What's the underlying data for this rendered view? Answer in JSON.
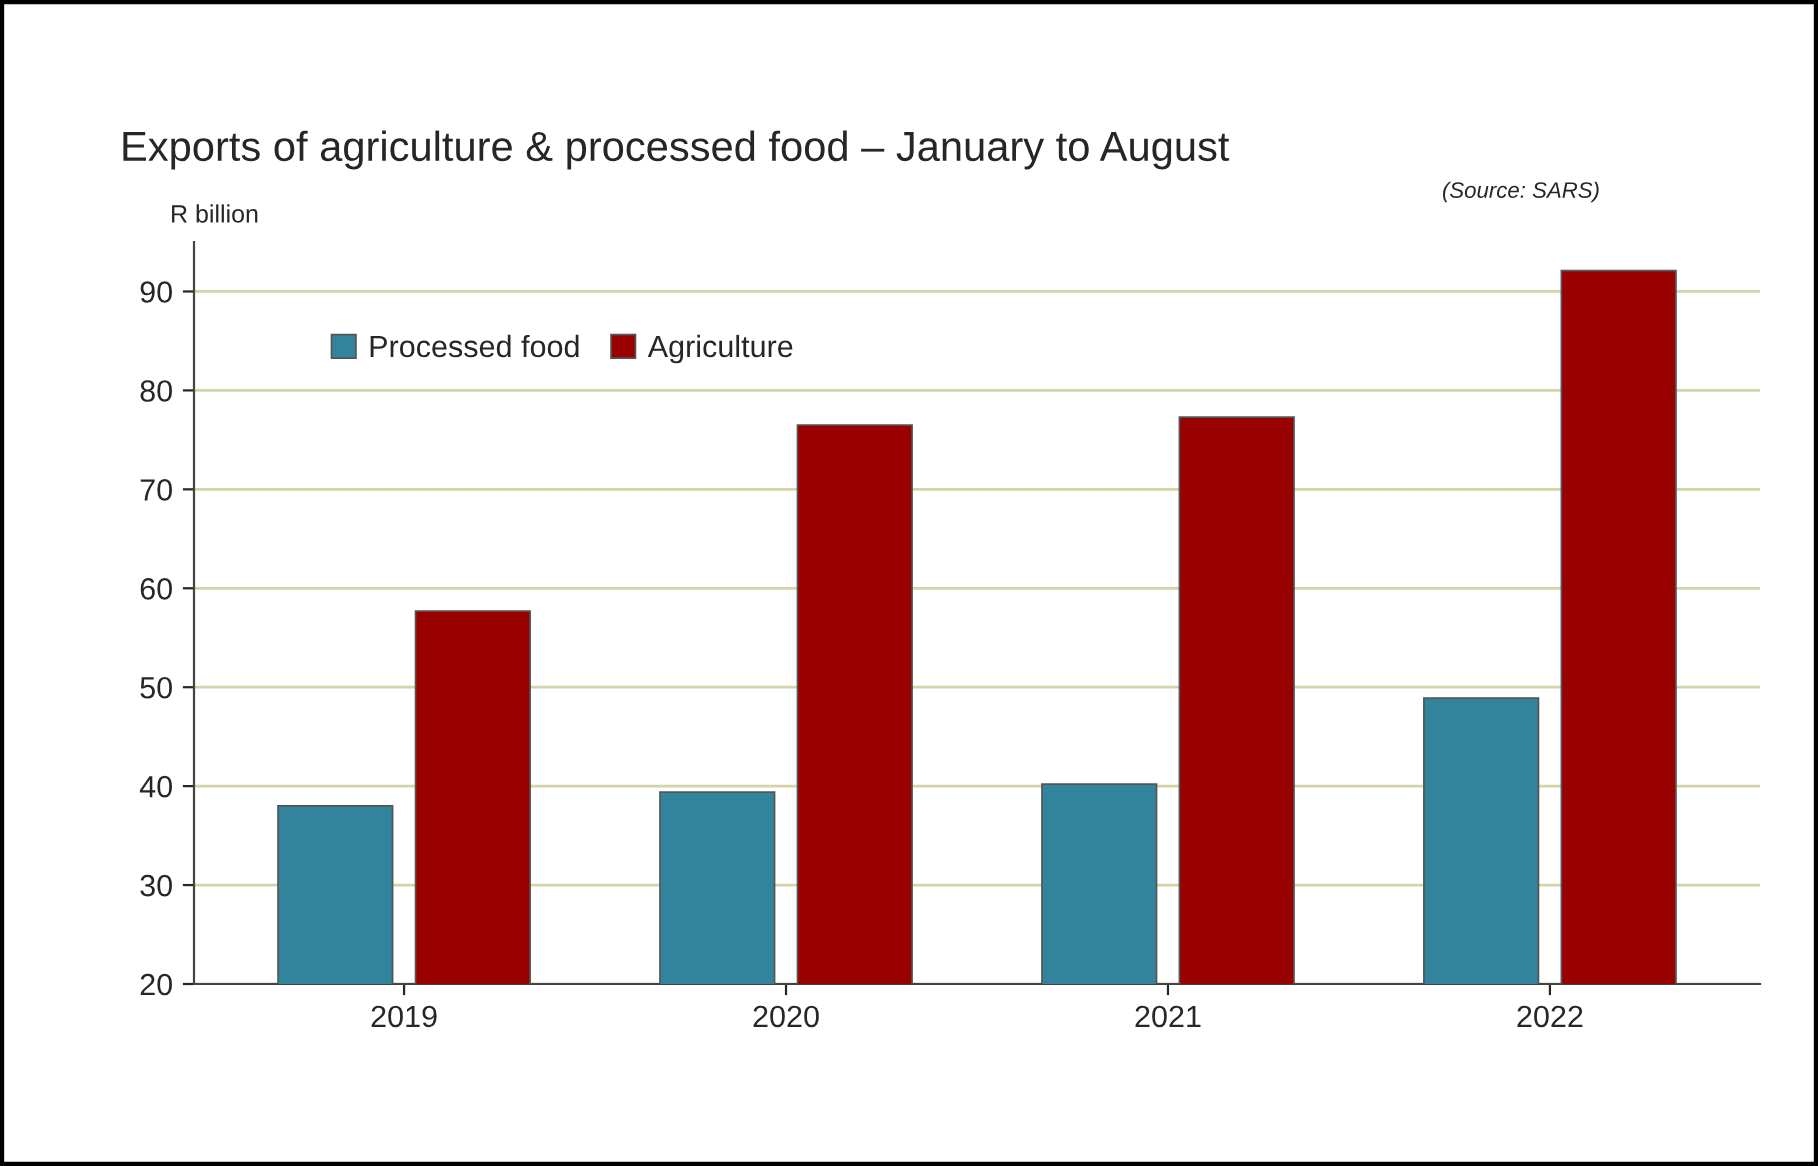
{
  "chart_data": {
    "type": "bar",
    "title": "Exports of agriculture & processed food – January to August",
    "ylabel": "R billion",
    "annotations": [
      "(Source: SARS)"
    ],
    "categories": [
      "2019",
      "2020",
      "2021",
      "2022"
    ],
    "series": [
      {
        "name": "Processed food",
        "color": "#31849b",
        "values": [
          38.0,
          39.4,
          40.2,
          48.9
        ]
      },
      {
        "name": "Agriculture",
        "color": "#990000",
        "values": [
          57.7,
          76.5,
          77.3,
          92.1
        ]
      }
    ],
    "ylim": [
      20,
      95
    ],
    "yticks": [
      20,
      30,
      40,
      50,
      60,
      70,
      80,
      90
    ],
    "grid": "y",
    "legend": "top left"
  }
}
